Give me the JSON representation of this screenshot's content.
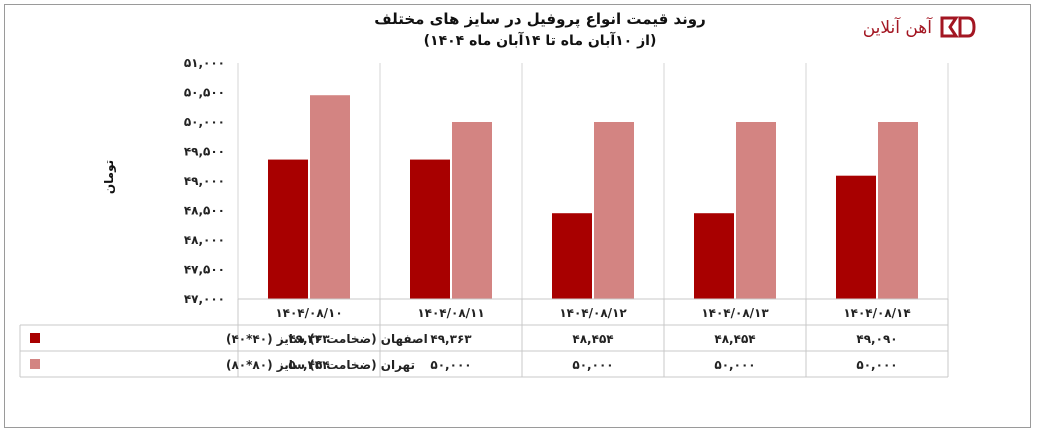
{
  "brand": {
    "name": "آهن آنلاین",
    "color": "#a31622"
  },
  "chart_data": {
    "type": "bar",
    "title": "روند قیمت انواع پروفیل در سایز های مختلف",
    "subtitle": "(از ۱۰آبان ماه تا ۱۴آبان ماه ۱۴۰۴)",
    "ylabel": "تومان",
    "xlabel": "",
    "ylim": [
      47000,
      51000
    ],
    "yticks": [
      "۴۷,۰۰۰",
      "۴۷,۵۰۰",
      "۴۸,۰۰۰",
      "۴۸,۵۰۰",
      "۴۹,۰۰۰",
      "۴۹,۵۰۰",
      "۵۰,۰۰۰",
      "۵۰,۵۰۰",
      "۵۱,۰۰۰"
    ],
    "ytick_values": [
      47000,
      47500,
      48000,
      48500,
      49000,
      49500,
      50000,
      50500,
      51000
    ],
    "categories": [
      "۱۴۰۴/۰۸/۱۰",
      "۱۴۰۴/۰۸/۱۱",
      "۱۴۰۴/۰۸/۱۲",
      "۱۴۰۴/۰۸/۱۳",
      "۱۴۰۴/۰۸/۱۴"
    ],
    "grid": true,
    "legend": "data-table",
    "series": [
      {
        "name": "اصفهان (ضخامت ۳) سایز (۴۰*۴۰)",
        "color": "#a80000",
        "values": [
          49363,
          49363,
          48454,
          48454,
          49090
        ],
        "labels": [
          "۴۹,۳۶۳",
          "۴۹,۳۶۳",
          "۴۸,۴۵۴",
          "۴۸,۴۵۴",
          "۴۹,۰۹۰"
        ]
      },
      {
        "name": "تهران (ضخامت ۲) سایز (۸۰*۸۰)",
        "color": "#d38482",
        "values": [
          50454,
          50000,
          50000,
          50000,
          50000
        ],
        "labels": [
          "۵۰,۴۵۴",
          "۵۰,۰۰۰",
          "۵۰,۰۰۰",
          "۵۰,۰۰۰",
          "۵۰,۰۰۰"
        ]
      }
    ]
  }
}
